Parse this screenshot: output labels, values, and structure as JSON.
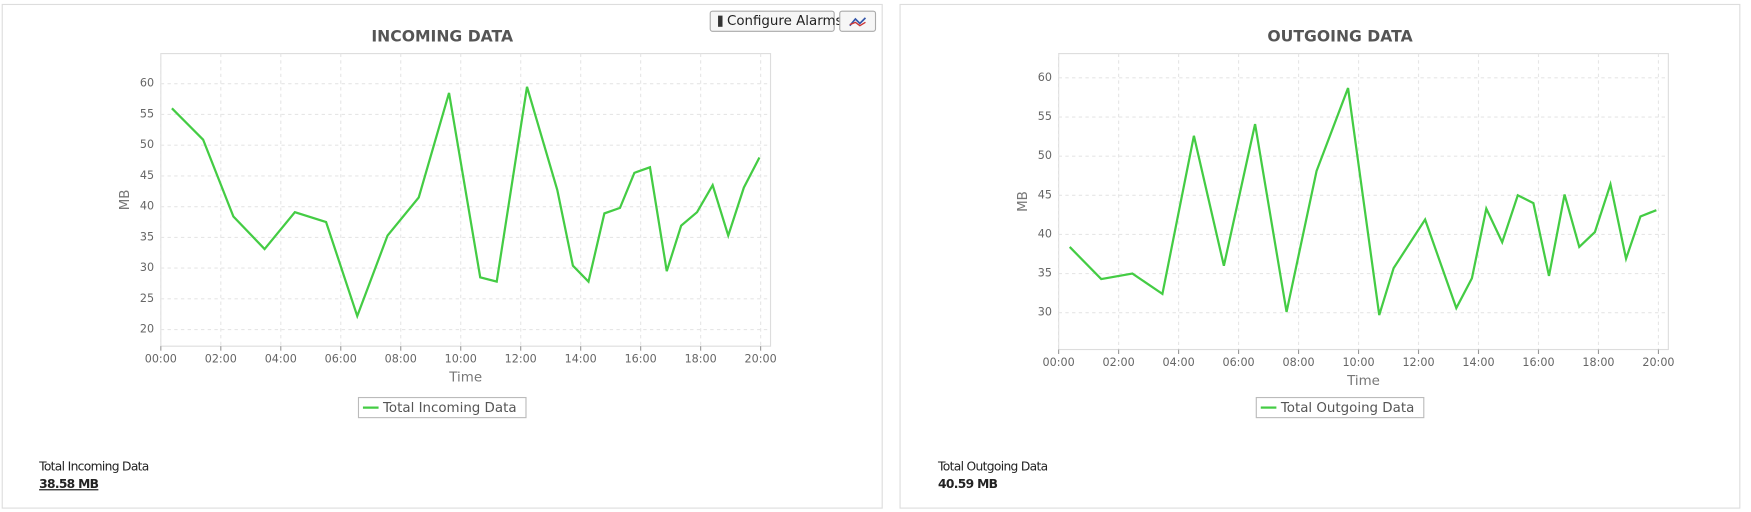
{
  "toolbar": {
    "button": "Configure Alarms"
  },
  "chart_data": [
    {
      "type": "line",
      "title": "INCOMING DATA",
      "x_label": "Time",
      "y_label": "MB",
      "grid": true,
      "x": [
        0.37,
        1.41,
        2.42,
        3.46,
        4.47,
        5.51,
        6.55,
        7.56,
        8.6,
        9.61,
        10.65,
        11.2,
        12.21,
        13.22,
        13.74,
        14.26,
        14.79,
        15.31,
        15.79,
        16.31,
        16.87,
        17.35,
        17.88,
        18.4,
        18.92,
        19.44,
        19.96
      ],
      "series": [
        {
          "name": "Total Incoming Data",
          "color": "#44cc44",
          "values": [
            56.0,
            50.9,
            38.4,
            33.1,
            39.1,
            37.5,
            22.2,
            35.3,
            41.5,
            58.5,
            28.5,
            27.8,
            59.5,
            42.7,
            30.4,
            27.8,
            38.9,
            39.8,
            45.5,
            46.4,
            29.5,
            36.9,
            39.1,
            43.5,
            35.3,
            43.1,
            48.0
          ]
        }
      ],
      "xlim": [
        0,
        20.33
      ],
      "ylim": [
        17.3,
        64.9
      ],
      "xticks": [
        {
          "value": 0,
          "label": "00:00"
        },
        {
          "value": 2,
          "label": "02:00"
        },
        {
          "value": 4,
          "label": "04:00"
        },
        {
          "value": 6,
          "label": "06:00"
        },
        {
          "value": 8,
          "label": "08:00"
        },
        {
          "value": 10,
          "label": "10:00"
        },
        {
          "value": 12,
          "label": "12:00"
        },
        {
          "value": 14,
          "label": "14:00"
        },
        {
          "value": 16,
          "label": "16:00"
        },
        {
          "value": 18,
          "label": "18:00"
        },
        {
          "value": 20,
          "label": "20:00"
        }
      ],
      "yticks": [
        20,
        25,
        30,
        35,
        40,
        45,
        50,
        55,
        60
      ]
    },
    {
      "type": "line",
      "title": "OUTGOING DATA",
      "x_label": "Time",
      "y_label": "MB",
      "grid": true,
      "x": [
        0.37,
        1.42,
        2.46,
        3.46,
        4.51,
        5.51,
        6.55,
        7.6,
        8.6,
        9.65,
        10.69,
        11.17,
        12.22,
        13.26,
        13.78,
        14.26,
        14.79,
        15.31,
        15.83,
        16.35,
        16.87,
        17.36,
        17.88,
        18.4,
        18.92,
        19.4,
        19.93
      ],
      "series": [
        {
          "name": "Total Outgoing Data",
          "color": "#44cc44",
          "values": [
            38.4,
            34.3,
            35.0,
            32.4,
            52.6,
            36.0,
            54.1,
            30.1,
            48.1,
            58.7,
            29.7,
            35.7,
            41.9,
            30.6,
            34.4,
            43.3,
            39.0,
            45.0,
            44.0,
            34.7,
            45.1,
            38.4,
            40.3,
            46.4,
            36.9,
            42.3,
            43.1
          ]
        }
      ],
      "xlim": [
        0,
        20.33
      ],
      "ylim": [
        25.3,
        63.1
      ],
      "xticks": [
        {
          "value": 0,
          "label": "00:00"
        },
        {
          "value": 2,
          "label": "02:00"
        },
        {
          "value": 4,
          "label": "04:00"
        },
        {
          "value": 6,
          "label": "06:00"
        },
        {
          "value": 8,
          "label": "08:00"
        },
        {
          "value": 10,
          "label": "10:00"
        },
        {
          "value": 12,
          "label": "12:00"
        },
        {
          "value": 14,
          "label": "14:00"
        },
        {
          "value": 16,
          "label": "16:00"
        },
        {
          "value": 18,
          "label": "18:00"
        },
        {
          "value": 20,
          "label": "20:00"
        }
      ],
      "yticks": [
        30,
        35,
        40,
        45,
        50,
        55,
        60
      ]
    }
  ],
  "summary": [
    {
      "label": "Total Incoming Data",
      "value": "38.58 MB"
    },
    {
      "label": "Total Outgoing Data",
      "value": "40.59 MB"
    }
  ]
}
